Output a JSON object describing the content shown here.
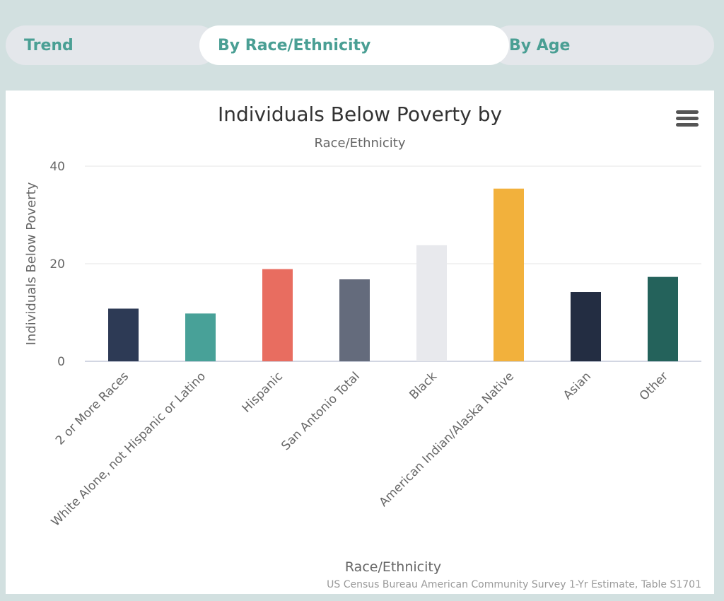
{
  "tabs": [
    {
      "label": "Trend"
    },
    {
      "label": "By Race/Ethnicity"
    },
    {
      "label": "By Age"
    }
  ],
  "chart_data": {
    "type": "bar",
    "title": "Individuals Below Poverty by",
    "subtitle": "Race/Ethnicity",
    "xlabel": "Race/Ethnicity",
    "ylabel": "Individuals Below Poverty",
    "ylim": [
      0,
      40
    ],
    "yticks": [
      0,
      20,
      40
    ],
    "grid": true,
    "categories": [
      "2 or More Races",
      "White Alone, not Hispanic or Latino",
      "Hispanic",
      "San Antonio Total",
      "Black",
      "American Indian/Alaska Native",
      "Asian",
      "Other"
    ],
    "values": [
      10.8,
      9.8,
      18.9,
      16.8,
      23.8,
      35.4,
      14.2,
      17.3
    ],
    "colors": [
      "#2d3a55",
      "#48a198",
      "#e86d60",
      "#646b7c",
      "#e8e9ed",
      "#f2b13c",
      "#232d42",
      "#24625b"
    ],
    "credits": "US Census Bureau American Community Survey 1-Yr Estimate, Table S1701"
  },
  "icons": {
    "menu": "hamburger-menu-icon"
  }
}
